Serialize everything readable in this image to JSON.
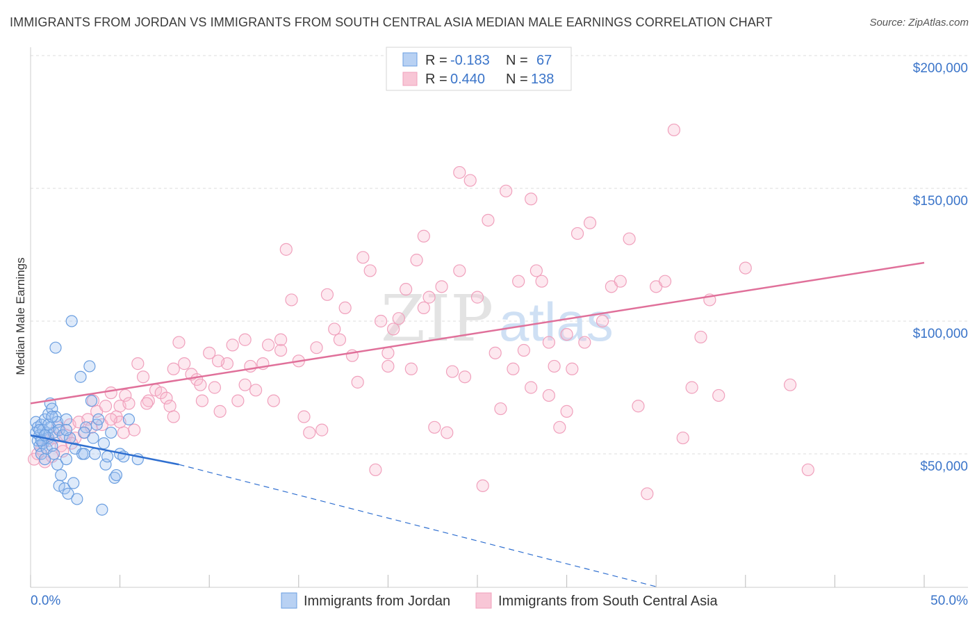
{
  "title": "IMMIGRANTS FROM JORDAN VS IMMIGRANTS FROM SOUTH CENTRAL ASIA MEDIAN MALE EARNINGS CORRELATION CHART",
  "source": "Source: ZipAtlas.com",
  "colors": {
    "jordan": "#6a9ee0",
    "jordan_line": "#2f6fd0",
    "sca": "#f0a0bc",
    "sca_line": "#e0709a",
    "tick_text": "#3a74c9",
    "grid": "#dddddd"
  },
  "legend": {
    "r_label": "R =",
    "n_label": "N =",
    "rows": [
      {
        "r": "-0.183",
        "n": "67"
      },
      {
        "r": "0.440",
        "n": "138"
      }
    ]
  },
  "chart_data": {
    "type": "scatter",
    "title": "IMMIGRANTS FROM JORDAN VS IMMIGRANTS FROM SOUTH CENTRAL ASIA MEDIAN MALE EARNINGS CORRELATION CHART",
    "xlabel": "",
    "ylabel": "Median Male Earnings",
    "xlim": [
      0,
      50
    ],
    "ylim": [
      0,
      210000
    ],
    "x_tick_labels": [
      "0.0%",
      "50.0%"
    ],
    "y_ticks": [
      50000,
      100000,
      150000,
      200000
    ],
    "y_tick_labels": [
      "$50,000",
      "$100,000",
      "$150,000",
      "$200,000"
    ],
    "grid": "horizontal dashed",
    "watermark": "ZIPatlas",
    "series": [
      {
        "name": "Immigrants from Jordan",
        "points": [
          [
            0.3,
            58000
          ],
          [
            0.3,
            62000
          ],
          [
            0.4,
            60000
          ],
          [
            0.4,
            55000
          ],
          [
            0.5,
            53000
          ],
          [
            0.5,
            57000
          ],
          [
            0.6,
            61000
          ],
          [
            0.6,
            50000
          ],
          [
            0.7,
            59000
          ],
          [
            0.7,
            54000
          ],
          [
            0.8,
            63000
          ],
          [
            0.8,
            48000
          ],
          [
            0.9,
            58000
          ],
          [
            0.9,
            52000
          ],
          [
            1.0,
            65000
          ],
          [
            1.0,
            56000
          ],
          [
            1.1,
            60000
          ],
          [
            1.1,
            69000
          ],
          [
            1.2,
            67000
          ],
          [
            1.2,
            53000
          ],
          [
            1.3,
            58000
          ],
          [
            1.3,
            50000
          ],
          [
            1.4,
            90000
          ],
          [
            1.4,
            64000
          ],
          [
            1.5,
            62000
          ],
          [
            1.5,
            46000
          ],
          [
            1.6,
            59000
          ],
          [
            1.6,
            38000
          ],
          [
            1.7,
            42000
          ],
          [
            1.8,
            57000
          ],
          [
            1.9,
            37000
          ],
          [
            2.0,
            63000
          ],
          [
            2.0,
            48000
          ],
          [
            2.1,
            35000
          ],
          [
            2.2,
            56000
          ],
          [
            2.3,
            100000
          ],
          [
            2.4,
            39000
          ],
          [
            2.5,
            52000
          ],
          [
            2.6,
            33000
          ],
          [
            2.8,
            79000
          ],
          [
            2.9,
            50000
          ],
          [
            3.0,
            50000
          ],
          [
            3.1,
            60000
          ],
          [
            3.3,
            83000
          ],
          [
            3.4,
            70000
          ],
          [
            3.5,
            56000
          ],
          [
            3.6,
            50000
          ],
          [
            3.7,
            61000
          ],
          [
            3.8,
            63000
          ],
          [
            4.0,
            29000
          ],
          [
            4.1,
            54000
          ],
          [
            4.2,
            46000
          ],
          [
            4.3,
            49000
          ],
          [
            4.5,
            58000
          ],
          [
            4.7,
            41000
          ],
          [
            4.8,
            42000
          ],
          [
            5.0,
            50000
          ],
          [
            5.2,
            49000
          ],
          [
            5.5,
            63000
          ],
          [
            0.5,
            59000
          ],
          [
            0.6,
            55000
          ],
          [
            0.8,
            57000
          ],
          [
            1.0,
            61000
          ],
          [
            1.2,
            64000
          ],
          [
            2.0,
            59000
          ],
          [
            3.0,
            58000
          ],
          [
            6.0,
            48000
          ]
        ],
        "trend": {
          "x0": 0,
          "y0": 57000,
          "x1": 8.3,
          "y1": 46000,
          "dashed_to_x": 35,
          "dashed_to_y": 0
        }
      },
      {
        "name": "Immigrants from South Central Asia",
        "points": [
          [
            0.2,
            48000
          ],
          [
            0.4,
            50000
          ],
          [
            0.6,
            52000
          ],
          [
            0.8,
            47000
          ],
          [
            1.0,
            55000
          ],
          [
            1.2,
            49000
          ],
          [
            1.5,
            60000
          ],
          [
            1.7,
            53000
          ],
          [
            2.0,
            57000
          ],
          [
            2.2,
            61000
          ],
          [
            2.5,
            56000
          ],
          [
            2.7,
            62000
          ],
          [
            3.0,
            58000
          ],
          [
            3.2,
            63000
          ],
          [
            3.5,
            70000
          ],
          [
            3.7,
            66000
          ],
          [
            4.0,
            61000
          ],
          [
            4.2,
            68000
          ],
          [
            4.5,
            73000
          ],
          [
            4.8,
            64000
          ],
          [
            5.0,
            68000
          ],
          [
            5.3,
            72000
          ],
          [
            5.5,
            69000
          ],
          [
            5.8,
            59000
          ],
          [
            6.0,
            84000
          ],
          [
            6.3,
            79000
          ],
          [
            6.6,
            70000
          ],
          [
            7.0,
            74000
          ],
          [
            7.3,
            73000
          ],
          [
            7.6,
            71000
          ],
          [
            7.8,
            68000
          ],
          [
            8.0,
            82000
          ],
          [
            8.3,
            92000
          ],
          [
            8.6,
            84000
          ],
          [
            9.0,
            80000
          ],
          [
            9.3,
            78000
          ],
          [
            9.6,
            70000
          ],
          [
            10.0,
            88000
          ],
          [
            10.3,
            75000
          ],
          [
            10.6,
            66000
          ],
          [
            11.0,
            84000
          ],
          [
            11.3,
            91000
          ],
          [
            11.6,
            70000
          ],
          [
            12.0,
            76000
          ],
          [
            12.3,
            83000
          ],
          [
            12.6,
            74000
          ],
          [
            13.0,
            84000
          ],
          [
            13.3,
            91000
          ],
          [
            13.6,
            70000
          ],
          [
            14.0,
            89000
          ],
          [
            14.3,
            127000
          ],
          [
            14.6,
            108000
          ],
          [
            15.0,
            85000
          ],
          [
            15.3,
            64000
          ],
          [
            15.6,
            58000
          ],
          [
            16.0,
            90000
          ],
          [
            16.3,
            59000
          ],
          [
            16.6,
            110000
          ],
          [
            17.0,
            97000
          ],
          [
            17.3,
            93000
          ],
          [
            17.6,
            105000
          ],
          [
            18.0,
            87000
          ],
          [
            18.3,
            77000
          ],
          [
            18.6,
            124000
          ],
          [
            19.0,
            119000
          ],
          [
            19.3,
            44000
          ],
          [
            19.6,
            100000
          ],
          [
            20.0,
            88000
          ],
          [
            20.3,
            97000
          ],
          [
            20.6,
            101000
          ],
          [
            21.0,
            112000
          ],
          [
            21.3,
            82000
          ],
          [
            21.6,
            123000
          ],
          [
            22.0,
            105000
          ],
          [
            22.3,
            109000
          ],
          [
            22.6,
            60000
          ],
          [
            23.0,
            113000
          ],
          [
            23.3,
            58000
          ],
          [
            23.6,
            81000
          ],
          [
            24.0,
            119000
          ],
          [
            24.3,
            79000
          ],
          [
            24.6,
            153000
          ],
          [
            25.0,
            109000
          ],
          [
            25.3,
            38000
          ],
          [
            25.6,
            138000
          ],
          [
            26.0,
            88000
          ],
          [
            26.3,
            67000
          ],
          [
            26.6,
            149000
          ],
          [
            27.0,
            82000
          ],
          [
            27.3,
            115000
          ],
          [
            27.6,
            89000
          ],
          [
            28.0,
            146000
          ],
          [
            28.3,
            119000
          ],
          [
            28.6,
            115000
          ],
          [
            29.0,
            92000
          ],
          [
            29.3,
            83000
          ],
          [
            29.6,
            60000
          ],
          [
            30.0,
            95000
          ],
          [
            30.3,
            82000
          ],
          [
            30.6,
            133000
          ],
          [
            31.0,
            92000
          ],
          [
            31.3,
            137000
          ],
          [
            32.0,
            100000
          ],
          [
            32.5,
            113000
          ],
          [
            33.0,
            115000
          ],
          [
            33.5,
            131000
          ],
          [
            34.0,
            68000
          ],
          [
            34.5,
            35000
          ],
          [
            35.0,
            113000
          ],
          [
            35.5,
            115000
          ],
          [
            36.0,
            172000
          ],
          [
            36.5,
            56000
          ],
          [
            37.0,
            75000
          ],
          [
            37.5,
            94000
          ],
          [
            38.0,
            108000
          ],
          [
            38.5,
            72000
          ],
          [
            40.0,
            120000
          ],
          [
            42.5,
            76000
          ],
          [
            43.5,
            44000
          ],
          [
            5.2,
            58000
          ],
          [
            5.0,
            62000
          ],
          [
            22.0,
            132000
          ],
          [
            24.0,
            156000
          ],
          [
            29.0,
            72000
          ],
          [
            12.0,
            93000
          ],
          [
            14.0,
            93000
          ],
          [
            20.0,
            83000
          ],
          [
            8.0,
            64000
          ],
          [
            9.5,
            76000
          ],
          [
            10.5,
            85000
          ],
          [
            6.5,
            69000
          ],
          [
            4.5,
            63000
          ],
          [
            1.3,
            56000
          ],
          [
            1.8,
            51000
          ],
          [
            2.3,
            54000
          ],
          [
            3.4,
            60000
          ],
          [
            30.0,
            66000
          ],
          [
            28.0,
            75000
          ]
        ],
        "trend": {
          "x0": 0,
          "y0": 69000,
          "x1": 50,
          "y1": 122000
        }
      }
    ]
  },
  "bottom_legend": {
    "items": [
      {
        "label": "Immigrants from Jordan"
      },
      {
        "label": "Immigrants from South Central Asia"
      }
    ]
  },
  "x_labels": {
    "left": "0.0%",
    "right": "50.0%"
  }
}
